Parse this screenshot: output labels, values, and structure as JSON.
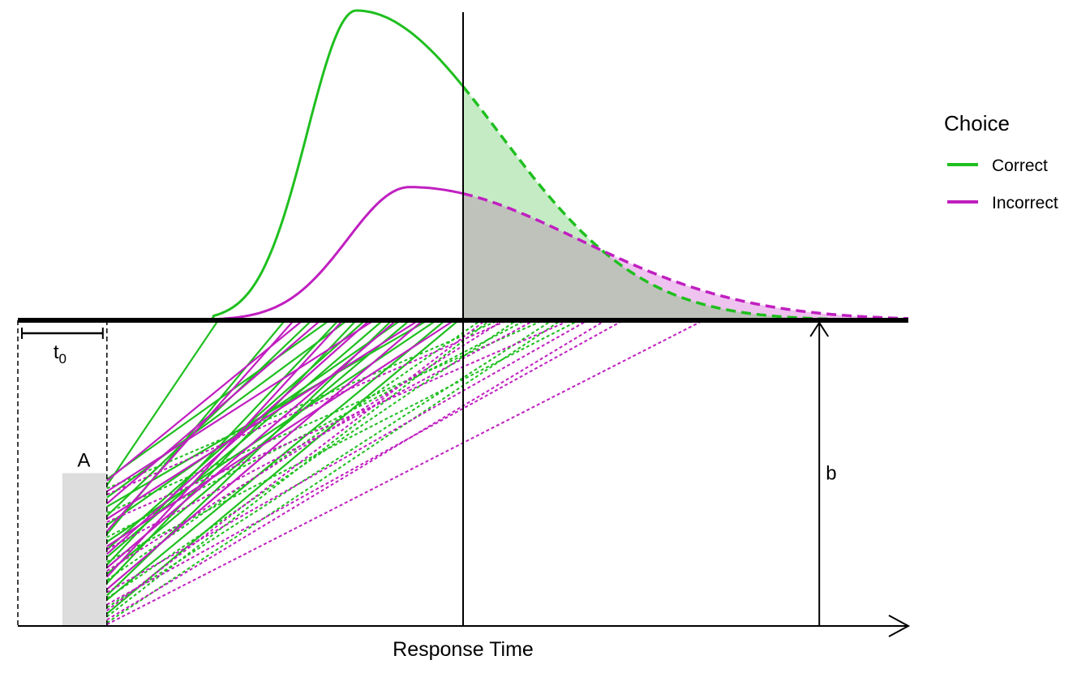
{
  "colors": {
    "correct": "#1fbf1f",
    "incorrect": "#c01fc0",
    "correct_fill": "#c5ebc5",
    "incorrect_fill": "#efc3ef",
    "overlap_fill": "#bfc2bb",
    "start_box": "#dddddd",
    "ink": "#000000"
  },
  "labels": {
    "t0_main": "t",
    "t0_sub": "0",
    "start_point": "A",
    "threshold": "b",
    "x_axis": "Response Time"
  },
  "legend": {
    "title": "Choice",
    "items": [
      {
        "label": "Correct",
        "color": "#1fbf1f"
      },
      {
        "label": "Incorrect",
        "color": "#c01fc0"
      }
    ]
  },
  "model": {
    "t0": 1,
    "A": 1,
    "b": 2,
    "deadline": 5,
    "x_max": 10,
    "correct_density": {
      "peak_time": 3.8,
      "peak_height": 1.0,
      "left_sd": 0.55,
      "right_sd": 1.6
    },
    "incorrect_density": {
      "peak_time": 4.4,
      "peak_height": 0.43,
      "left_sd": 0.7,
      "right_sd": 1.9
    },
    "accumulator_paths": {
      "correct": [
        {
          "start": 0.96,
          "finish": 3.5
        },
        {
          "start": 0.84,
          "finish": 3.7
        },
        {
          "start": 0.78,
          "finish": 4.6
        },
        {
          "start": 0.72,
          "finish": 3.3
        },
        {
          "start": 0.66,
          "finish": 4.3
        },
        {
          "start": 0.6,
          "finish": 3.0
        },
        {
          "start": 0.55,
          "finish": 4.7
        },
        {
          "start": 0.5,
          "finish": 3.9
        },
        {
          "start": 0.45,
          "finish": 4.1
        },
        {
          "start": 0.4,
          "finish": 3.6
        },
        {
          "start": 0.34,
          "finish": 4.4
        },
        {
          "start": 0.28,
          "finish": 3.8
        },
        {
          "start": 0.2,
          "finish": 4.2
        },
        {
          "start": 0.17,
          "finish": 4.8
        },
        {
          "start": 0.92,
          "finish": 2.25
        },
        {
          "start": 0.9,
          "finish": 5.4
        },
        {
          "start": 0.74,
          "finish": 5.9
        },
        {
          "start": 0.58,
          "finish": 5.7
        },
        {
          "start": 0.42,
          "finish": 6.3
        },
        {
          "start": 0.3,
          "finish": 5.2
        },
        {
          "start": 0.18,
          "finish": 5.6
        },
        {
          "start": 0.12,
          "finish": 6.0
        },
        {
          "start": 0.06,
          "finish": 5.3
        },
        {
          "start": 0.02,
          "finish": 6.1
        },
        {
          "start": 0.08,
          "finish": 4.95
        }
      ],
      "incorrect": [
        {
          "start": 0.95,
          "finish": 3.2
        },
        {
          "start": 0.88,
          "finish": 4.0
        },
        {
          "start": 0.8,
          "finish": 3.4
        },
        {
          "start": 0.7,
          "finish": 4.5
        },
        {
          "start": 0.62,
          "finish": 3.1
        },
        {
          "start": 0.52,
          "finish": 4.9
        },
        {
          "start": 0.47,
          "finish": 3.95
        },
        {
          "start": 0.38,
          "finish": 4.25
        },
        {
          "start": 0.32,
          "finish": 3.65
        },
        {
          "start": 0.24,
          "finish": 4.55
        },
        {
          "start": 0.86,
          "finish": 5.5
        },
        {
          "start": 0.68,
          "finish": 6.2
        },
        {
          "start": 0.5,
          "finish": 5.8
        },
        {
          "start": 0.36,
          "finish": 5.45
        },
        {
          "start": 0.22,
          "finish": 6.4
        },
        {
          "start": 0.1,
          "finish": 5.25
        },
        {
          "start": 0.04,
          "finish": 6.6
        },
        {
          "start": 0.01,
          "finish": 7.7
        },
        {
          "start": 0.14,
          "finish": 6.8
        }
      ]
    }
  }
}
